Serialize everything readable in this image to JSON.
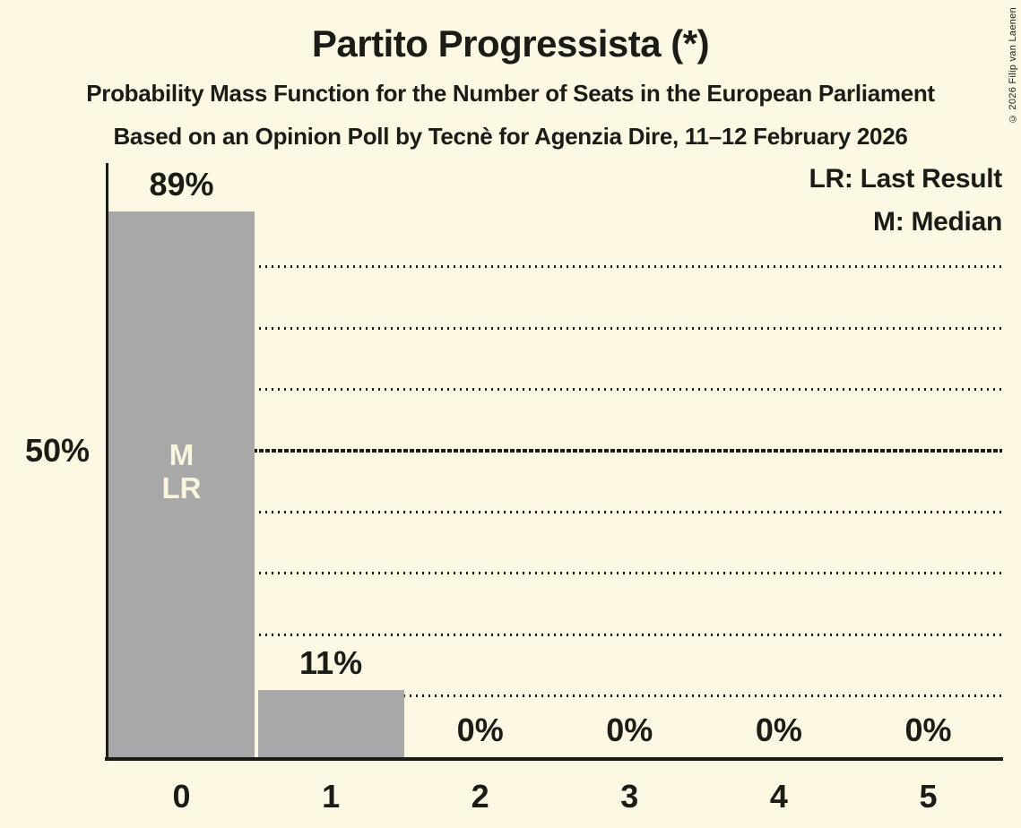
{
  "chart_data": {
    "type": "bar",
    "title": "Partito Progressista (*)",
    "subtitle": "Probability Mass Function for the Number of Seats in the European Parliament",
    "source_line": "Based on an Opinion Poll by Tecnè for Agenzia Dire, 11–12 February 2026",
    "copyright": "© 2026 Filip van Laenen",
    "categories": [
      "0",
      "1",
      "2",
      "3",
      "4",
      "5"
    ],
    "values": [
      89,
      11,
      0,
      0,
      0,
      0
    ],
    "value_labels": [
      "89%",
      "11%",
      "0%",
      "0%",
      "0%",
      "0%"
    ],
    "xlabel": "",
    "ylabel": "",
    "ylim": [
      0,
      97
    ],
    "gridlines_pct": [
      10,
      20,
      30,
      40,
      50,
      60,
      70,
      80
    ],
    "highlighted_gridline_pct": 50,
    "y_tick_label": "50%",
    "legend": {
      "lr": "LR: Last Result",
      "median": "M: Median"
    },
    "annotations": {
      "median_marker": "M",
      "last_result_marker": "LR",
      "annotated_category": "0"
    },
    "colors": {
      "background": "#FCF8E3",
      "bar": "#A8A8A8",
      "text": "#1C1C17",
      "bar_marker_text": "#FAF5DE"
    }
  }
}
